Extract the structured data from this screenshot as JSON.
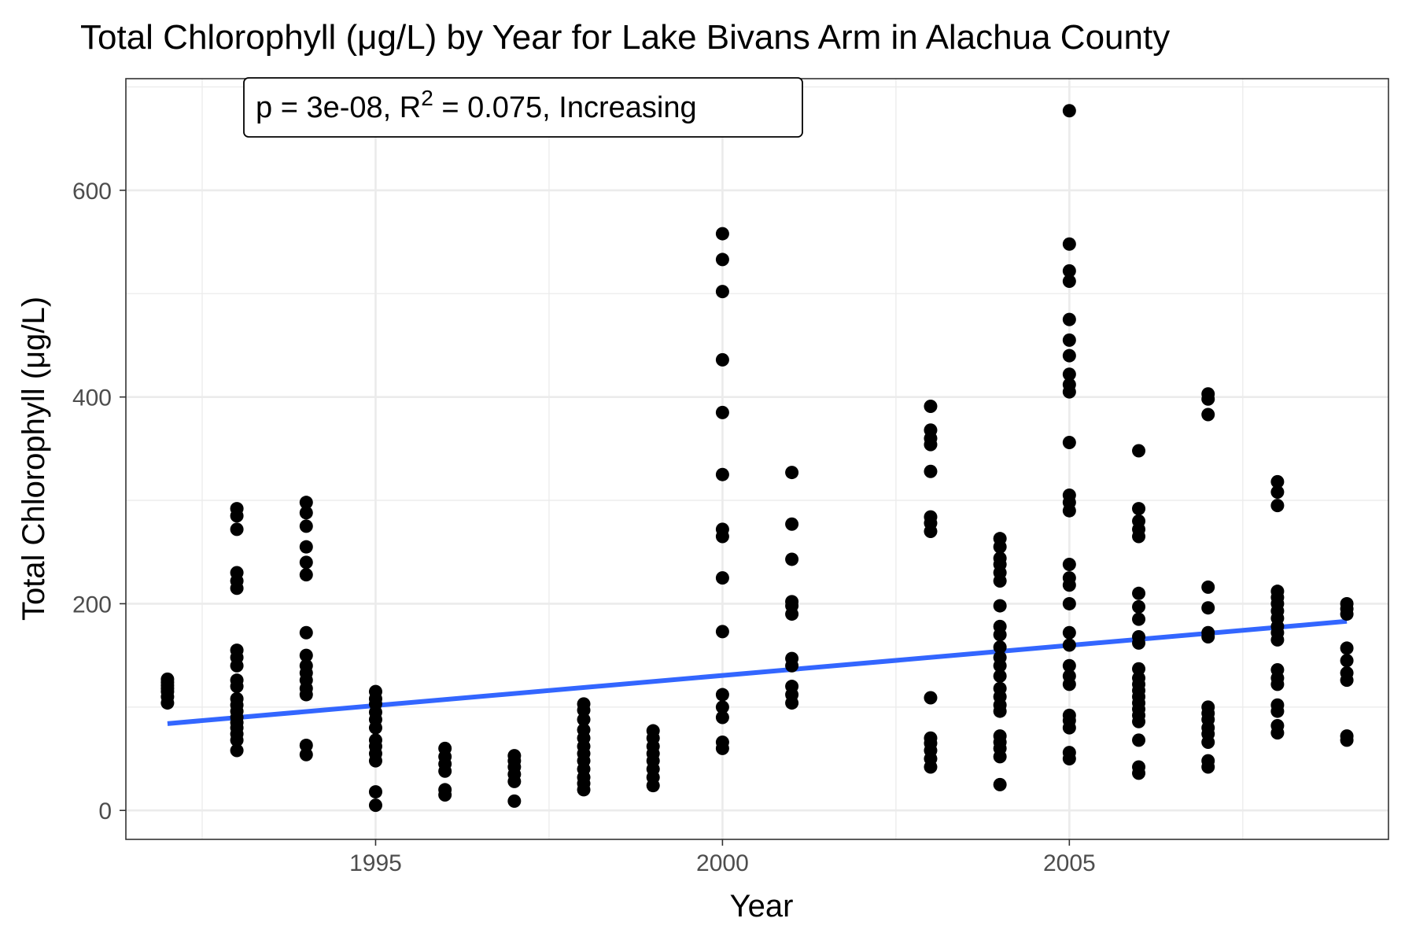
{
  "chart_data": {
    "type": "scatter",
    "title": "Total Chlorophyll (μg/L) by Year for Lake Bivans Arm in Alachua County",
    "xlabel": "Year",
    "ylabel": "Total Chlorophyll (μg/L)",
    "xlim": [
      1991.4,
      2009.6
    ],
    "ylim": [
      -28,
      708
    ],
    "x_ticks": [
      1995,
      2000,
      2005
    ],
    "x_tick_labels": [
      "1995",
      "2000",
      "2005"
    ],
    "y_ticks": [
      0,
      200,
      400,
      600
    ],
    "y_tick_labels": [
      "0",
      "200",
      "400",
      "600"
    ],
    "grid": true,
    "legend": "none",
    "annotation": {
      "prefix": "p = 3e-08, R",
      "superscript": "2",
      "suffix": " = 0.075, Increasing"
    },
    "trend_line": {
      "color": "#3366ff",
      "x": [
        1992,
        2009
      ],
      "y": [
        84,
        183
      ]
    },
    "point_color": "#000000",
    "points": [
      {
        "year": 1992,
        "values": [
          104,
          110,
          115,
          118,
          121,
          124,
          127
        ]
      },
      {
        "year": 1993,
        "values": [
          58,
          68,
          74,
          80,
          85,
          90,
          96,
          102,
          108,
          120,
          126,
          140,
          148,
          155,
          215,
          222,
          230,
          272,
          285,
          292
        ]
      },
      {
        "year": 1994,
        "values": [
          54,
          63,
          112,
          118,
          126,
          133,
          140,
          150,
          172,
          228,
          240,
          255,
          275,
          288,
          298
        ]
      },
      {
        "year": 1995,
        "values": [
          5,
          18,
          48,
          55,
          62,
          68,
          80,
          88,
          95,
          103,
          108,
          115
        ]
      },
      {
        "year": 1996,
        "values": [
          15,
          20,
          38,
          45,
          52,
          60
        ]
      },
      {
        "year": 1997,
        "values": [
          9,
          28,
          35,
          42,
          48,
          53
        ]
      },
      {
        "year": 1998,
        "values": [
          20,
          26,
          32,
          40,
          48,
          55,
          62,
          70,
          78,
          88,
          97,
          103
        ]
      },
      {
        "year": 1999,
        "values": [
          24,
          32,
          40,
          48,
          55,
          62,
          70,
          77
        ]
      },
      {
        "year": 2000,
        "values": [
          60,
          66,
          90,
          100,
          112,
          173,
          225,
          265,
          272,
          325,
          385,
          436,
          502,
          533,
          558
        ]
      },
      {
        "year": 2001,
        "values": [
          104,
          112,
          120,
          140,
          147,
          190,
          198,
          202,
          243,
          277,
          327
        ]
      },
      {
        "year": 2003,
        "values": [
          42,
          50,
          58,
          65,
          70,
          109,
          270,
          278,
          284,
          328,
          354,
          360,
          368,
          391
        ]
      },
      {
        "year": 2004,
        "values": [
          25,
          52,
          60,
          66,
          72,
          96,
          102,
          110,
          118,
          130,
          140,
          148,
          158,
          170,
          178,
          198,
          222,
          230,
          238,
          244,
          255,
          263
        ]
      },
      {
        "year": 2005,
        "values": [
          50,
          56,
          80,
          87,
          92,
          122,
          130,
          140,
          160,
          172,
          200,
          218,
          225,
          238,
          290,
          298,
          305,
          356,
          405,
          412,
          422,
          440,
          455,
          475,
          512,
          522,
          548,
          677
        ]
      },
      {
        "year": 2006,
        "values": [
          36,
          42,
          68,
          86,
          92,
          98,
          104,
          110,
          116,
          122,
          128,
          137,
          162,
          168,
          185,
          197,
          210,
          265,
          272,
          280,
          292,
          348
        ]
      },
      {
        "year": 2007,
        "values": [
          42,
          48,
          66,
          74,
          80,
          88,
          94,
          100,
          168,
          172,
          196,
          216,
          383,
          398,
          403
        ]
      },
      {
        "year": 2008,
        "values": [
          75,
          82,
          96,
          102,
          122,
          128,
          136,
          165,
          172,
          178,
          186,
          193,
          200,
          206,
          212,
          295,
          308,
          318
        ]
      },
      {
        "year": 2009,
        "values": [
          68,
          72,
          126,
          133,
          145,
          157,
          190,
          195,
          200
        ]
      }
    ]
  }
}
